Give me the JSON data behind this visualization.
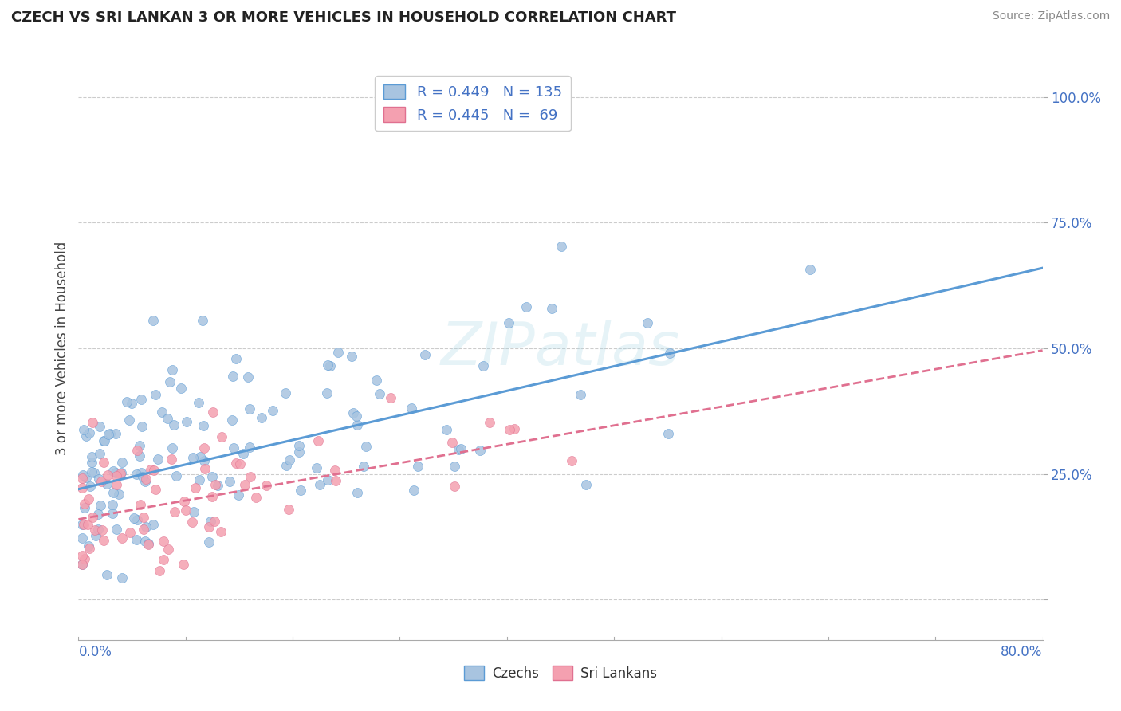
{
  "title": "CZECH VS SRI LANKAN 3 OR MORE VEHICLES IN HOUSEHOLD CORRELATION CHART",
  "source": "Source: ZipAtlas.com",
  "ylabel": "3 or more Vehicles in Household",
  "xlim": [
    0.0,
    80.0
  ],
  "ylim": [
    -8.0,
    108.0
  ],
  "czech_R": 0.449,
  "czech_N": 135,
  "srilankan_R": 0.445,
  "srilankan_N": 69,
  "czech_color": "#a8c4e0",
  "srilankan_color": "#f4a0b0",
  "czech_line_color": "#5b9bd5",
  "srilankan_line_color": "#e07090",
  "background_color": "#ffffff",
  "grid_color": "#cccccc",
  "czech_intercept": 22.0,
  "czech_slope": 0.55,
  "srilankan_intercept": 16.0,
  "srilankan_slope": 0.42,
  "watermark": "ZIPatlas",
  "axis_label_color": "#4472c4",
  "title_color": "#222222",
  "source_color": "#888888"
}
